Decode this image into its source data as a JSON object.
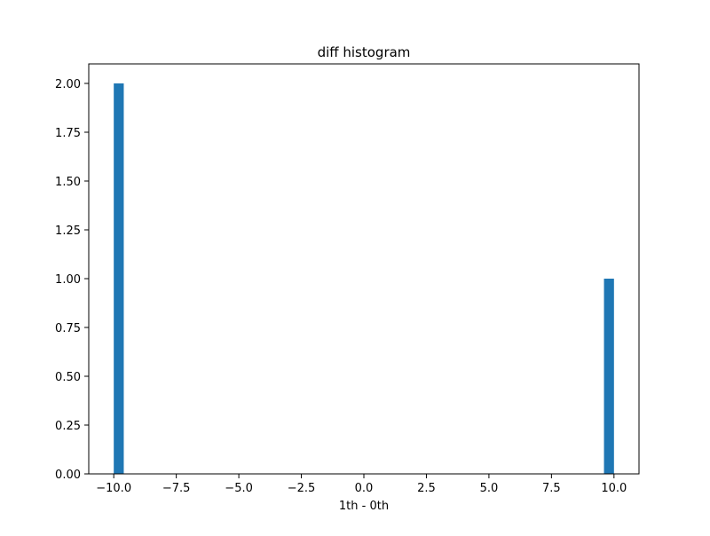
{
  "chart_data": {
    "type": "bar",
    "title": "diff histogram",
    "xlabel": "1th - 0th",
    "ylabel": "",
    "xlim": [
      -11.0,
      11.0
    ],
    "ylim": [
      0,
      2.1
    ],
    "x_ticks": [
      -10.0,
      -7.5,
      -5.0,
      -2.5,
      0.0,
      2.5,
      5.0,
      7.5,
      10.0
    ],
    "x_tick_labels": [
      "−10.0",
      "−7.5",
      "−5.0",
      "−2.5",
      "0.0",
      "2.5",
      "5.0",
      "7.5",
      "10.0"
    ],
    "y_ticks": [
      0.0,
      0.25,
      0.5,
      0.75,
      1.0,
      1.25,
      1.5,
      1.75,
      2.0
    ],
    "y_tick_labels": [
      "0.00",
      "0.25",
      "0.50",
      "0.75",
      "1.00",
      "1.25",
      "1.50",
      "1.75",
      "2.00"
    ],
    "bins": [
      {
        "x0": -10.0,
        "x1": -9.6,
        "count": 2
      },
      {
        "x0": 9.6,
        "x1": 10.0,
        "count": 1
      }
    ],
    "grid": false,
    "bar_color": "#1f77b4"
  }
}
